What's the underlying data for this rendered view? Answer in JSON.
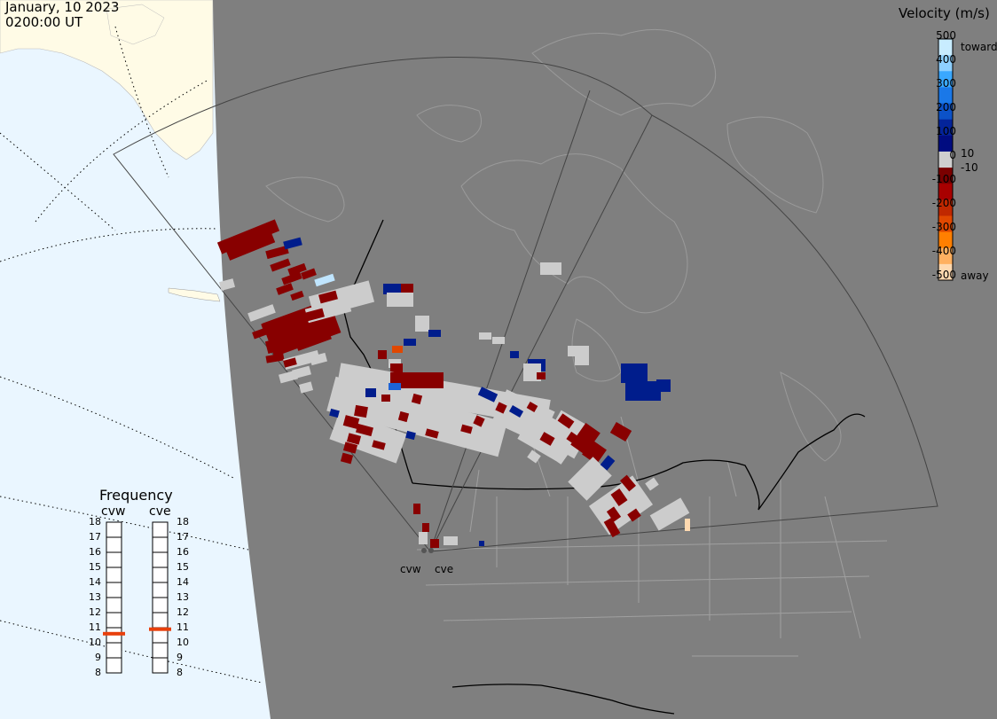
{
  "header": {
    "date": "January, 10 2023",
    "time": "0200:00 UT"
  },
  "colorbar": {
    "title": "Velocity (m/s)",
    "ticks": [
      "500",
      "400",
      "300",
      "200",
      "100",
      "0",
      "-100",
      "-200",
      "-300",
      "-400",
      "-500"
    ],
    "toward_label": "toward",
    "away_label": "away",
    "threshold_pos": "10",
    "threshold_neg": "-10",
    "colors": [
      "#c8ecff",
      "#8ed0ff",
      "#3aa8ff",
      "#1a78e8",
      "#0c52c8",
      "#04249a",
      "#000c80",
      "#cfcfcf",
      "#7a0000",
      "#a80000",
      "#c02800",
      "#e04800",
      "#ff7f00",
      "#ffb060",
      "#ffd9b0"
    ]
  },
  "frequency_panel": {
    "title": "Frequency",
    "radars": [
      {
        "name": "cvw",
        "current_mhz": 10.6
      },
      {
        "name": "cve",
        "current_mhz": 10.9
      }
    ],
    "ticks": [
      "18",
      "17",
      "16",
      "15",
      "14",
      "13",
      "12",
      "11",
      "10",
      "9",
      "8"
    ],
    "range_mhz": [
      8,
      18
    ],
    "marker_color": "#e8400c"
  },
  "map": {
    "site_labels": [
      "cvw",
      "cve"
    ],
    "colors": {
      "ocean": "#eaf6ff",
      "land_sunlit": "#fffbe6",
      "night": "#7f7f7f",
      "borders": "#a0a0a0",
      "country": "#000000",
      "low_velocity": "#cccccc",
      "fov_outline": "#444444"
    }
  }
}
